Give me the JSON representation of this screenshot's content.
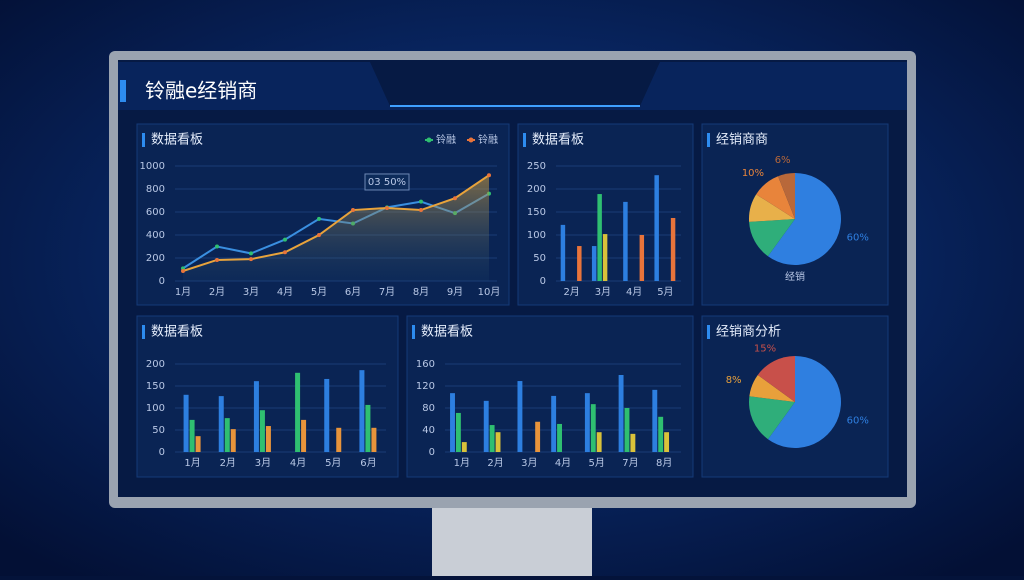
{
  "header": {
    "title": "铃融e经销商"
  },
  "panels": [
    {
      "title": "数据看板",
      "chart": {
        "type": "line",
        "categories": [
          "1月",
          "2月",
          "3月",
          "4月",
          "5月",
          "6月",
          "7月",
          "8月",
          "9月",
          "10月"
        ],
        "ylim": [
          0,
          1000
        ],
        "yticks": [
          0,
          200,
          400,
          600,
          800,
          1000
        ],
        "grid": true,
        "legend": "top-right",
        "annotation": "03 50%",
        "series": [
          {
            "name": "铃融",
            "color": "#2fbf71",
            "line_color": "#3a8fe0",
            "values": [
              110,
              300,
              240,
              360,
              540,
              500,
              640,
              690,
              590,
              760
            ]
          },
          {
            "name": "铃融",
            "color": "#e8743b",
            "line_color": "#e8a33b",
            "area": true,
            "values": [
              87,
              183,
              190,
              250,
              400,
              617,
              635,
              617,
              720,
              920
            ]
          }
        ]
      }
    },
    {
      "title": "数据看板",
      "chart": {
        "type": "bar",
        "categories": [
          "2月",
          "3月",
          "4月",
          "5月"
        ],
        "ylim": [
          0,
          250
        ],
        "yticks": [
          0,
          50,
          100,
          150,
          200,
          250
        ],
        "grid": true,
        "series": [
          {
            "color": "#2d7fe0",
            "values": [
              122,
              76,
              172,
              230
            ]
          },
          {
            "color": "#2fbf71",
            "values": [
              null,
              189,
              null,
              null
            ]
          },
          {
            "color": "#d9c23a",
            "values": [
              null,
              102,
              null,
              null
            ]
          },
          {
            "color": "#e8743b",
            "values": [
              76,
              null,
              100,
              137
            ]
          }
        ]
      }
    },
    {
      "title": "经销商商",
      "chart": {
        "type": "pie",
        "label": "经销",
        "values": [
          60,
          14,
          10,
          10,
          6
        ],
        "value_labels": [
          "60%",
          null,
          null,
          "10%",
          "6%"
        ],
        "colors": [
          "#2f7fe0",
          "#2fae7a",
          "#e8b04a",
          "#e8843b",
          "#b8683a"
        ]
      }
    },
    {
      "title": "数据看板",
      "chart": {
        "type": "bar",
        "categories": [
          "1月",
          "2月",
          "3月",
          "4月",
          "5月",
          "6月"
        ],
        "ylim": [
          0,
          200
        ],
        "yticks": [
          0,
          50,
          100,
          150,
          200
        ],
        "grid": true,
        "series": [
          {
            "color": "#2d7fe0",
            "values": [
              130,
              127,
              161,
              null,
              166,
              186
            ]
          },
          {
            "color": "#2fbf71",
            "values": [
              73,
              77,
              95,
              180,
              null,
              107
            ]
          },
          {
            "color": "#e8943b",
            "values": [
              36,
              52,
              59,
              73,
              55,
              55
            ]
          }
        ]
      }
    },
    {
      "title": "数据看板",
      "chart": {
        "type": "bar",
        "categories": [
          "1月",
          "2月",
          "3月",
          "4月",
          "5月",
          "7月",
          "8月"
        ],
        "ylim": [
          0,
          160
        ],
        "yticks": [
          0,
          40,
          80,
          120,
          160
        ],
        "grid": true,
        "series": [
          {
            "color": "#2d7fe0",
            "values": [
              107,
              93,
              129,
              102,
              107,
              140,
              113
            ]
          },
          {
            "color": "#2fbf71",
            "values": [
              71,
              49,
              null,
              51,
              87,
              80,
              64
            ]
          },
          {
            "color": "#d9c23a",
            "values": [
              18,
              36,
              null,
              null,
              36,
              33,
              36
            ]
          },
          {
            "color": "#e8943b",
            "values": [
              null,
              null,
              55,
              null,
              null,
              null,
              null
            ]
          }
        ]
      }
    },
    {
      "title": "经销商分析",
      "chart": {
        "type": "pie",
        "values": [
          60,
          17,
          8,
          15
        ],
        "value_labels": [
          "60%",
          null,
          "8%",
          "15%"
        ],
        "colors": [
          "#2f7fe0",
          "#2fae7a",
          "#e8a03b",
          "#c8504a"
        ]
      }
    }
  ]
}
